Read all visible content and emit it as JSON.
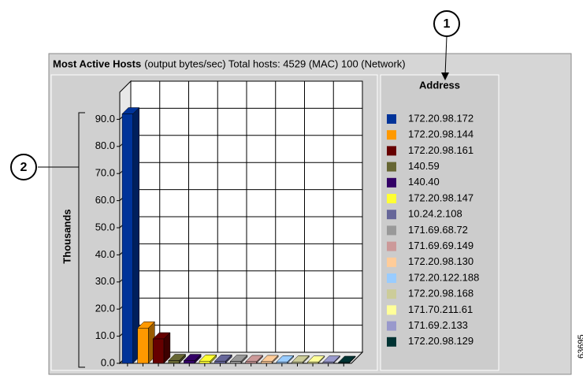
{
  "chart_data": {
    "type": "bar3d",
    "title": "Most Active Hosts",
    "subtitle": "(output bytes/sec) Total hosts: 4529 (MAC) 100 (Network)",
    "y_label": "Thousands",
    "legend_title": "Address",
    "categories": [
      "172.20.98.172",
      "172.20.98.144",
      "172.20.98.161",
      "140.59",
      "140.40",
      "172.20.98.147",
      "10.24.2.108",
      "171.69.68.72",
      "171.69.69.149",
      "172.20.98.130",
      "172.20.122.188",
      "172.20.98.168",
      "171.70.211.61",
      "171.69.2.133",
      "172.20.98.129"
    ],
    "values": [
      92,
      13,
      9,
      1,
      1,
      0.8,
      0.8,
      0.7,
      0.6,
      0.6,
      0.5,
      0.5,
      0.4,
      0.4,
      0.3
    ],
    "colors": [
      "#003399",
      "#ff9900",
      "#660000",
      "#666633",
      "#330066",
      "#ffff33",
      "#666699",
      "#999999",
      "#cc9999",
      "#ffcc99",
      "#99ccff",
      "#cccc99",
      "#ffff99",
      "#9999cc",
      "#003333"
    ],
    "ylim": [
      0,
      100
    ],
    "yticks": [
      {
        "value": 0,
        "label": "0.0"
      },
      {
        "value": 10,
        "label": "10.0"
      },
      {
        "value": 20,
        "label": "20.0"
      },
      {
        "value": 30,
        "label": "30.0"
      },
      {
        "value": 40,
        "label": "40.0"
      },
      {
        "value": 50,
        "label": "50.0"
      },
      {
        "value": 60,
        "label": "60.0"
      },
      {
        "value": 70,
        "label": "70.0"
      },
      {
        "value": 80,
        "label": "80.0"
      },
      {
        "value": 90,
        "label": "90.0"
      }
    ],
    "grid": true,
    "callouts": [
      "1",
      "2"
    ],
    "figure_id": "63695"
  }
}
